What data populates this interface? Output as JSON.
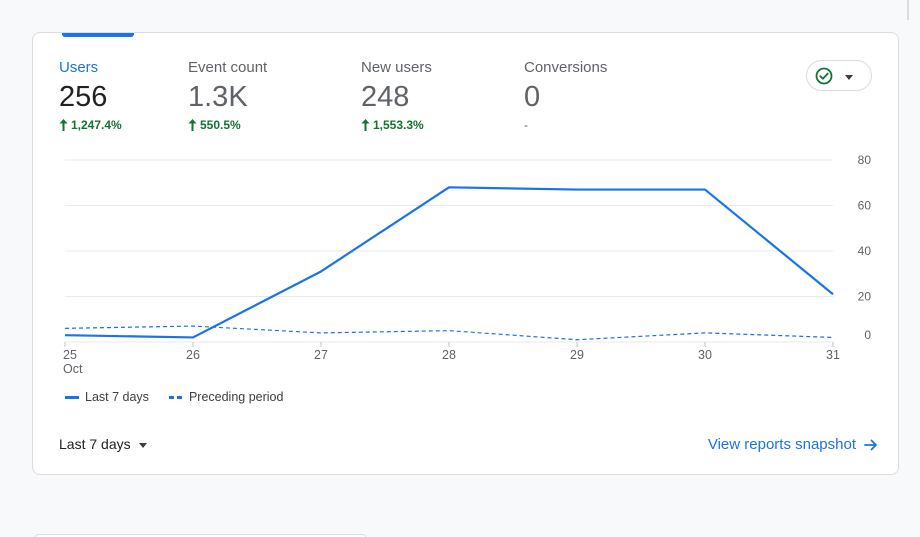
{
  "metrics": [
    {
      "label": "Users",
      "value": "256",
      "change": "1,247.4%",
      "direction": "up",
      "active": true
    },
    {
      "label": "Event count",
      "value": "1.3K",
      "change": "550.5%",
      "direction": "up",
      "active": false
    },
    {
      "label": "New users",
      "value": "248",
      "change": "1,553.3%",
      "direction": "up",
      "active": false
    },
    {
      "label": "Conversions",
      "value": "0",
      "change": "-",
      "direction": "none",
      "active": false
    }
  ],
  "status_dropdown": {
    "icon": "check-circle-icon"
  },
  "chart_data": {
    "type": "line",
    "x": [
      "25",
      "26",
      "27",
      "28",
      "29",
      "30",
      "31"
    ],
    "x_sublabel": "Oct",
    "yticks": [
      0,
      20,
      40,
      60,
      80
    ],
    "ylim": [
      0,
      80
    ],
    "grid": true,
    "series": [
      {
        "name": "Last 7 days",
        "style": "solid",
        "values": [
          3,
          2,
          31,
          68,
          67,
          67,
          21
        ]
      },
      {
        "name": "Preceding period",
        "style": "dashed",
        "values": [
          6,
          7,
          4,
          5,
          1,
          4,
          2
        ]
      }
    ],
    "legend_position": "bottom-left",
    "colors": {
      "line": "#1a73e8",
      "grid": "#e8eaed",
      "tick": "#5f6368"
    }
  },
  "footer": {
    "range_label": "Last 7 days",
    "link_label": "View reports snapshot"
  }
}
